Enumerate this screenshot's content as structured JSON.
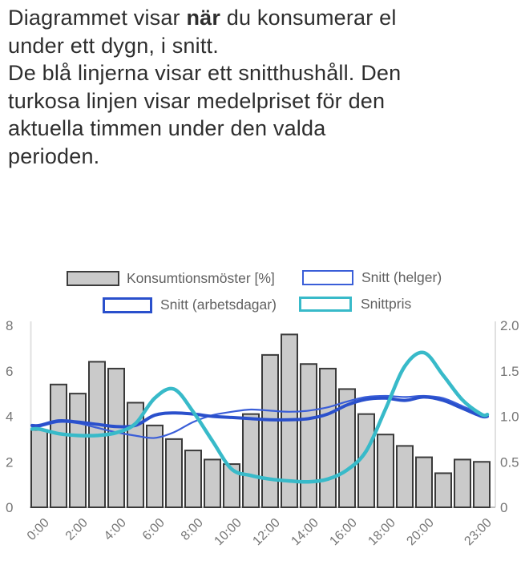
{
  "intro": {
    "line1_pre": "Diagrammet visar ",
    "line1_bold": "när",
    "line1_post": " du konsumerar el",
    "line2": "under ett dygn, i snitt.",
    "line3": "De blå linjerna visar ett snitthushåll. Den",
    "line4": "turkosa linjen visar medelpriset för den",
    "line5": "aktuella timmen under den valda",
    "line6": "perioden."
  },
  "legend": {
    "consumption": "Konsumtionsmöster [%]",
    "weekend": "Snitt (helger)",
    "weekday": "Snitt (arbetsdagar)",
    "price": "Snittpris"
  },
  "colors": {
    "bar_fill": "#cacaca",
    "bar_border": "#3a3a3a",
    "weekday_line": "#2a50cc",
    "weekend_line": "#3a5ed8",
    "price_line": "#38bac9",
    "axis_text": "#757575",
    "legend_text": "#616161",
    "intro_text": "#2e2e2e",
    "axis_line": "#e0e0e0",
    "baseline": "#bdbdbd"
  },
  "chart_data": {
    "type": "bar+line combo",
    "categories": [
      "0:00",
      "1:00",
      "2:00",
      "3:00",
      "4:00",
      "5:00",
      "6:00",
      "7:00",
      "8:00",
      "9:00",
      "10:00",
      "11:00",
      "12:00",
      "13:00",
      "14:00",
      "15:00",
      "16:00",
      "17:00",
      "18:00",
      "19:00",
      "20:00",
      "21:00",
      "22:00",
      "23:00"
    ],
    "bar_series": {
      "name": "Konsumtionsmöster [%]",
      "axis": "left",
      "values": [
        3.4,
        5.4,
        5.0,
        6.4,
        6.1,
        4.6,
        3.6,
        3.0,
        2.5,
        2.1,
        1.9,
        4.1,
        6.7,
        7.6,
        6.3,
        6.1,
        5.2,
        4.1,
        3.2,
        2.7,
        2.2,
        1.5,
        2.1,
        2.0
      ]
    },
    "line_series": [
      {
        "name": "Snitt (helger)",
        "axis": "left",
        "style": "thin",
        "values": [
          3.55,
          3.75,
          3.7,
          3.5,
          3.3,
          3.15,
          3.05,
          3.3,
          3.75,
          4.05,
          4.2,
          4.3,
          4.25,
          4.2,
          4.25,
          4.4,
          4.65,
          4.85,
          4.9,
          4.85,
          4.9,
          4.8,
          4.45,
          4.1
        ]
      },
      {
        "name": "Snitt (arbetsdagar)",
        "axis": "left",
        "style": "thick",
        "values": [
          3.6,
          3.8,
          3.75,
          3.65,
          3.55,
          3.6,
          4.05,
          4.15,
          4.1,
          4.0,
          3.95,
          3.9,
          3.85,
          3.85,
          3.9,
          4.1,
          4.5,
          4.75,
          4.8,
          4.7,
          4.85,
          4.7,
          4.35,
          4.0
        ]
      },
      {
        "name": "Snittpris",
        "axis": "right",
        "style": "thick",
        "values": [
          0.86,
          0.81,
          0.79,
          0.79,
          0.82,
          0.92,
          1.2,
          1.3,
          1.05,
          0.73,
          0.42,
          0.35,
          0.31,
          0.29,
          0.28,
          0.31,
          0.41,
          0.62,
          1.08,
          1.55,
          1.7,
          1.45,
          1.18,
          1.02
        ]
      }
    ],
    "left_axis": {
      "ticks": [
        "8",
        "6",
        "4",
        "2",
        "0"
      ],
      "range": [
        0,
        8
      ],
      "grid": false
    },
    "right_axis": {
      "ticks": [
        "2.0",
        "1.5",
        "1.0",
        "0.5",
        "0"
      ],
      "range": [
        0,
        2.0
      ],
      "grid": false
    },
    "x_tick_labels": [
      {
        "label": "0:00",
        "hour": 0
      },
      {
        "label": "2:00",
        "hour": 2
      },
      {
        "label": "4:00",
        "hour": 4
      },
      {
        "label": "6:00",
        "hour": 6
      },
      {
        "label": "8:00",
        "hour": 8
      },
      {
        "label": "10:00",
        "hour": 10
      },
      {
        "label": "12:00",
        "hour": 12
      },
      {
        "label": "14:00",
        "hour": 14
      },
      {
        "label": "16:00",
        "hour": 16
      },
      {
        "label": "18:00",
        "hour": 18
      },
      {
        "label": "20:00",
        "hour": 20
      },
      {
        "label": "23:00",
        "hour": 23
      }
    ],
    "legend_position": "top"
  }
}
